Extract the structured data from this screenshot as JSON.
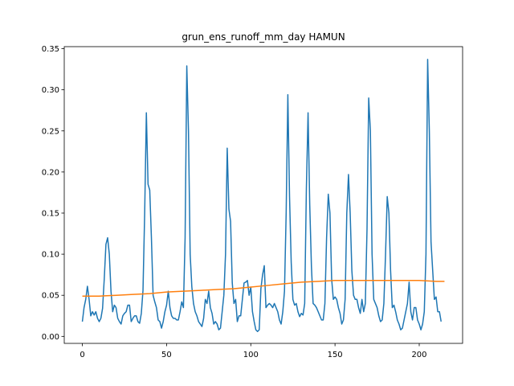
{
  "chart_data": {
    "type": "line",
    "title": "grun_ens_runoff_mm_day HAMUN",
    "xlabel": "",
    "ylabel": "",
    "xlim": [
      -10.75,
      225.75
    ],
    "ylim": [
      -0.0085,
      0.3525
    ],
    "x_ticks": [
      0,
      50,
      100,
      150,
      200
    ],
    "x_tick_labels": [
      "0",
      "50",
      "100",
      "150",
      "200"
    ],
    "y_ticks": [
      0.0,
      0.05,
      0.1,
      0.15,
      0.2,
      0.25,
      0.3,
      0.35
    ],
    "y_tick_labels": [
      "0.00",
      "0.05",
      "0.10",
      "0.15",
      "0.20",
      "0.25",
      "0.30",
      "0.35"
    ],
    "grid": false,
    "legend": "none",
    "series": [
      {
        "color": "#1f77b4",
        "points": [
          [
            0,
            0.018
          ],
          [
            1,
            0.035
          ],
          [
            2,
            0.045
          ],
          [
            3,
            0.061
          ],
          [
            4,
            0.045
          ],
          [
            5,
            0.025
          ],
          [
            6,
            0.03
          ],
          [
            7,
            0.026
          ],
          [
            8,
            0.03
          ],
          [
            9,
            0.022
          ],
          [
            10,
            0.018
          ],
          [
            11,
            0.022
          ],
          [
            12,
            0.034
          ],
          [
            13,
            0.07
          ],
          [
            14,
            0.112
          ],
          [
            15,
            0.12
          ],
          [
            16,
            0.1
          ],
          [
            17,
            0.055
          ],
          [
            18,
            0.03
          ],
          [
            19,
            0.038
          ],
          [
            20,
            0.035
          ],
          [
            21,
            0.022
          ],
          [
            22,
            0.018
          ],
          [
            23,
            0.015
          ],
          [
            24,
            0.025
          ],
          [
            25,
            0.028
          ],
          [
            26,
            0.03
          ],
          [
            27,
            0.038
          ],
          [
            28,
            0.038
          ],
          [
            29,
            0.018
          ],
          [
            30,
            0.022
          ],
          [
            31,
            0.025
          ],
          [
            32,
            0.025
          ],
          [
            33,
            0.018
          ],
          [
            34,
            0.016
          ],
          [
            35,
            0.028
          ],
          [
            36,
            0.056
          ],
          [
            37,
            0.15
          ],
          [
            38,
            0.272
          ],
          [
            39,
            0.185
          ],
          [
            40,
            0.178
          ],
          [
            41,
            0.12
          ],
          [
            42,
            0.05
          ],
          [
            43,
            0.042
          ],
          [
            44,
            0.035
          ],
          [
            45,
            0.02
          ],
          [
            46,
            0.018
          ],
          [
            47,
            0.01
          ],
          [
            48,
            0.018
          ],
          [
            49,
            0.03
          ],
          [
            50,
            0.038
          ],
          [
            51,
            0.055
          ],
          [
            52,
            0.035
          ],
          [
            53,
            0.025
          ],
          [
            54,
            0.022
          ],
          [
            55,
            0.022
          ],
          [
            56,
            0.02
          ],
          [
            57,
            0.02
          ],
          [
            58,
            0.03
          ],
          [
            59,
            0.042
          ],
          [
            60,
            0.035
          ],
          [
            61,
            0.12
          ],
          [
            62,
            0.329
          ],
          [
            63,
            0.25
          ],
          [
            64,
            0.1
          ],
          [
            65,
            0.06
          ],
          [
            66,
            0.04
          ],
          [
            67,
            0.03
          ],
          [
            68,
            0.025
          ],
          [
            69,
            0.018
          ],
          [
            70,
            0.015
          ],
          [
            71,
            0.012
          ],
          [
            72,
            0.022
          ],
          [
            73,
            0.045
          ],
          [
            74,
            0.04
          ],
          [
            75,
            0.055
          ],
          [
            76,
            0.035
          ],
          [
            77,
            0.028
          ],
          [
            78,
            0.015
          ],
          [
            79,
            0.018
          ],
          [
            80,
            0.015
          ],
          [
            81,
            0.008
          ],
          [
            82,
            0.01
          ],
          [
            83,
            0.03
          ],
          [
            84,
            0.05
          ],
          [
            85,
            0.1
          ],
          [
            86,
            0.229
          ],
          [
            87,
            0.155
          ],
          [
            88,
            0.14
          ],
          [
            89,
            0.065
          ],
          [
            90,
            0.04
          ],
          [
            91,
            0.045
          ],
          [
            92,
            0.018
          ],
          [
            93,
            0.025
          ],
          [
            94,
            0.025
          ],
          [
            95,
            0.045
          ],
          [
            96,
            0.065
          ],
          [
            97,
            0.066
          ],
          [
            98,
            0.068
          ],
          [
            99,
            0.05
          ],
          [
            100,
            0.06
          ],
          [
            101,
            0.03
          ],
          [
            102,
            0.018
          ],
          [
            103,
            0.008
          ],
          [
            104,
            0.006
          ],
          [
            105,
            0.008
          ],
          [
            106,
            0.058
          ],
          [
            107,
            0.075
          ],
          [
            108,
            0.086
          ],
          [
            109,
            0.035
          ],
          [
            110,
            0.038
          ],
          [
            111,
            0.04
          ],
          [
            112,
            0.038
          ],
          [
            113,
            0.035
          ],
          [
            114,
            0.04
          ],
          [
            115,
            0.035
          ],
          [
            116,
            0.03
          ],
          [
            117,
            0.02
          ],
          [
            118,
            0.015
          ],
          [
            119,
            0.03
          ],
          [
            120,
            0.055
          ],
          [
            121,
            0.15
          ],
          [
            122,
            0.294
          ],
          [
            123,
            0.17
          ],
          [
            124,
            0.09
          ],
          [
            125,
            0.045
          ],
          [
            126,
            0.038
          ],
          [
            127,
            0.04
          ],
          [
            128,
            0.03
          ],
          [
            129,
            0.024
          ],
          [
            130,
            0.028
          ],
          [
            131,
            0.026
          ],
          [
            132,
            0.04
          ],
          [
            133,
            0.18
          ],
          [
            134,
            0.272
          ],
          [
            135,
            0.16
          ],
          [
            136,
            0.085
          ],
          [
            137,
            0.04
          ],
          [
            138,
            0.038
          ],
          [
            139,
            0.035
          ],
          [
            140,
            0.03
          ],
          [
            141,
            0.025
          ],
          [
            142,
            0.02
          ],
          [
            143,
            0.02
          ],
          [
            144,
            0.04
          ],
          [
            145,
            0.12
          ],
          [
            146,
            0.173
          ],
          [
            147,
            0.15
          ],
          [
            148,
            0.07
          ],
          [
            149,
            0.045
          ],
          [
            150,
            0.048
          ],
          [
            151,
            0.045
          ],
          [
            152,
            0.035
          ],
          [
            153,
            0.028
          ],
          [
            154,
            0.015
          ],
          [
            155,
            0.02
          ],
          [
            156,
            0.045
          ],
          [
            157,
            0.15
          ],
          [
            158,
            0.197
          ],
          [
            159,
            0.15
          ],
          [
            160,
            0.08
          ],
          [
            161,
            0.05
          ],
          [
            162,
            0.045
          ],
          [
            163,
            0.045
          ],
          [
            164,
            0.035
          ],
          [
            165,
            0.028
          ],
          [
            166,
            0.045
          ],
          [
            167,
            0.03
          ],
          [
            168,
            0.04
          ],
          [
            169,
            0.13
          ],
          [
            170,
            0.29
          ],
          [
            171,
            0.25
          ],
          [
            172,
            0.1
          ],
          [
            173,
            0.045
          ],
          [
            174,
            0.04
          ],
          [
            175,
            0.035
          ],
          [
            176,
            0.025
          ],
          [
            177,
            0.018
          ],
          [
            178,
            0.02
          ],
          [
            179,
            0.04
          ],
          [
            180,
            0.1
          ],
          [
            181,
            0.17
          ],
          [
            182,
            0.15
          ],
          [
            183,
            0.08
          ],
          [
            184,
            0.035
          ],
          [
            185,
            0.038
          ],
          [
            186,
            0.03
          ],
          [
            187,
            0.02
          ],
          [
            188,
            0.015
          ],
          [
            189,
            0.008
          ],
          [
            190,
            0.01
          ],
          [
            191,
            0.02
          ],
          [
            192,
            0.03
          ],
          [
            193,
            0.04
          ],
          [
            194,
            0.066
          ],
          [
            195,
            0.03
          ],
          [
            196,
            0.02
          ],
          [
            197,
            0.035
          ],
          [
            198,
            0.035
          ],
          [
            199,
            0.02
          ],
          [
            200,
            0.015
          ],
          [
            201,
            0.008
          ],
          [
            202,
            0.015
          ],
          [
            203,
            0.03
          ],
          [
            204,
            0.1
          ],
          [
            205,
            0.337
          ],
          [
            206,
            0.25
          ],
          [
            207,
            0.115
          ],
          [
            208,
            0.08
          ],
          [
            209,
            0.045
          ],
          [
            210,
            0.048
          ],
          [
            211,
            0.03
          ],
          [
            212,
            0.03
          ],
          [
            213,
            0.018
          ]
        ]
      },
      {
        "color": "#ff7f0e",
        "points": [
          [
            0,
            0.049
          ],
          [
            10,
            0.049
          ],
          [
            20,
            0.05
          ],
          [
            30,
            0.051
          ],
          [
            40,
            0.052
          ],
          [
            50,
            0.054
          ],
          [
            60,
            0.055
          ],
          [
            70,
            0.056
          ],
          [
            80,
            0.057
          ],
          [
            90,
            0.058
          ],
          [
            100,
            0.06
          ],
          [
            110,
            0.062
          ],
          [
            120,
            0.064
          ],
          [
            130,
            0.066
          ],
          [
            140,
            0.067
          ],
          [
            150,
            0.068
          ],
          [
            160,
            0.068
          ],
          [
            170,
            0.068
          ],
          [
            180,
            0.068
          ],
          [
            190,
            0.068
          ],
          [
            200,
            0.068
          ],
          [
            210,
            0.067
          ],
          [
            215,
            0.067
          ]
        ]
      }
    ]
  }
}
